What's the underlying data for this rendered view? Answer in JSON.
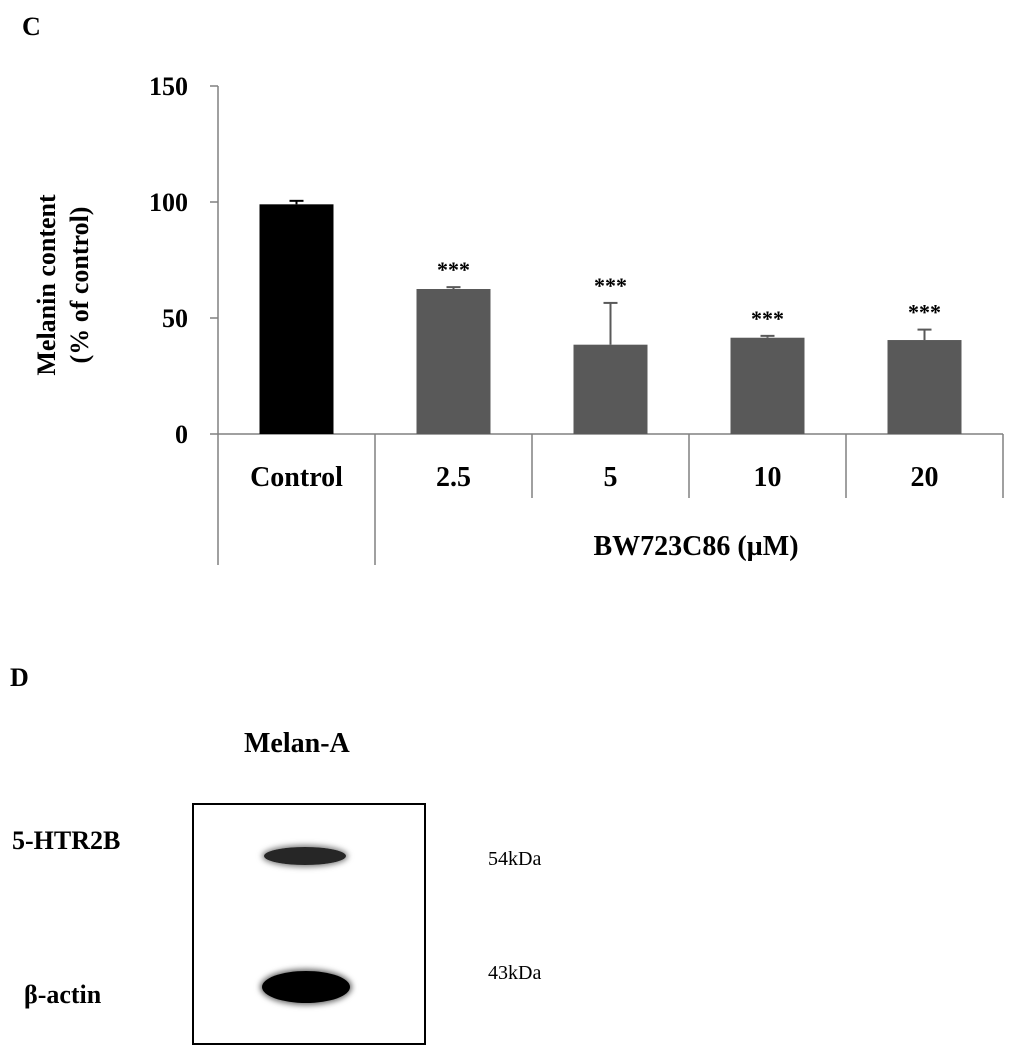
{
  "panels": {
    "c": "C",
    "d": "D"
  },
  "chart_data": {
    "type": "bar",
    "categories": [
      "Control",
      "2.5",
      "5",
      "10",
      "20"
    ],
    "values": [
      99,
      62.5,
      38.5,
      41.5,
      40.5
    ],
    "errors": [
      1.5,
      0.8,
      18,
      0.8,
      4.5
    ],
    "significance": [
      "",
      "***",
      "***",
      "***",
      "***"
    ],
    "bar_colors": [
      "#000000",
      "#595959",
      "#595959",
      "#595959",
      "#595959"
    ],
    "ylabel_line1": "Melanin content",
    "ylabel_line2": "(% of control)",
    "xlabel_group": "BW723C86 (µM)",
    "ylim": [
      0,
      150
    ],
    "yticks": [
      0,
      50,
      100,
      150
    ],
    "grid": false
  },
  "western_blot": {
    "title": "Melan-A",
    "bands": [
      {
        "protein": "5-HTR2B",
        "weight": "54kDa",
        "intensity": 0.85
      },
      {
        "protein": "β-actin",
        "weight": "43kDa",
        "intensity": 1.0
      }
    ]
  }
}
